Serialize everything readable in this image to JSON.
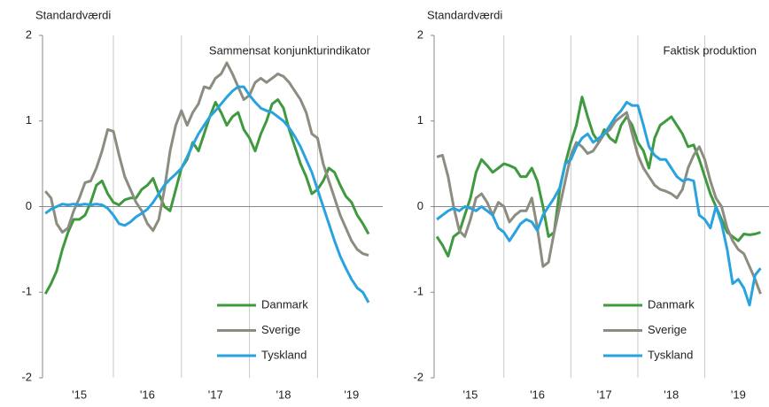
{
  "chart_data": [
    {
      "type": "line",
      "title": "Sammensat konjunkturindikator",
      "y_label": "Standardværdi",
      "categories": [
        null,
        null,
        null,
        null,
        null,
        null,
        "'15",
        null,
        null,
        null,
        null,
        null,
        null,
        null,
        null,
        null,
        null,
        null,
        "'16",
        null,
        null,
        null,
        null,
        null,
        null,
        null,
        null,
        null,
        null,
        null,
        "'17",
        null,
        null,
        null,
        null,
        null,
        null,
        null,
        null,
        null,
        null,
        null,
        "'18",
        null,
        null,
        null,
        null,
        null,
        null,
        null,
        null,
        null,
        null,
        null,
        "'19",
        null,
        null,
        null,
        null,
        null
      ],
      "ylim": [
        -2,
        2
      ],
      "yticks": [
        -2,
        -1,
        0,
        1,
        2
      ],
      "legend": "lower right",
      "series": [
        {
          "name": "Danmark",
          "color": "#3f9a3f",
          "values": [
            -1.02,
            -0.9,
            -0.75,
            -0.5,
            -0.3,
            -0.15,
            -0.15,
            -0.1,
            0.05,
            0.25,
            0.3,
            0.15,
            0.05,
            0.02,
            0.08,
            0.1,
            0.1,
            0.2,
            0.25,
            0.33,
            0.15,
            0.0,
            -0.05,
            0.2,
            0.45,
            0.55,
            0.75,
            0.65,
            0.85,
            1.05,
            1.22,
            1.1,
            0.95,
            1.05,
            1.1,
            0.9,
            0.8,
            0.65,
            0.85,
            1.0,
            1.2,
            1.25,
            1.15,
            0.9,
            0.7,
            0.5,
            0.35,
            0.15,
            0.2,
            0.3,
            0.45,
            0.4,
            0.25,
            0.12,
            0.05,
            -0.1,
            -0.2,
            -0.32,
            null,
            null
          ]
        },
        {
          "name": "Sverige",
          "color": "#8c8c80",
          "values": [
            0.18,
            0.1,
            -0.2,
            -0.3,
            -0.25,
            -0.05,
            0.1,
            0.28,
            0.3,
            0.45,
            0.65,
            0.9,
            0.88,
            0.6,
            0.35,
            0.2,
            0.05,
            -0.05,
            -0.2,
            -0.28,
            -0.15,
            0.2,
            0.65,
            0.95,
            1.12,
            0.95,
            1.1,
            1.2,
            1.4,
            1.38,
            1.5,
            1.55,
            1.68,
            1.55,
            1.4,
            1.25,
            1.3,
            1.45,
            1.5,
            1.45,
            1.5,
            1.55,
            1.52,
            1.45,
            1.35,
            1.25,
            1.1,
            0.85,
            0.8,
            0.5,
            0.3,
            0.1,
            -0.1,
            -0.25,
            -0.4,
            -0.5,
            -0.55,
            -0.57,
            null,
            null
          ]
        },
        {
          "name": "Tyskland",
          "color": "#29a3df",
          "values": [
            -0.08,
            -0.03,
            0.0,
            0.03,
            0.02,
            0.03,
            0.02,
            0.03,
            0.02,
            0.03,
            0.02,
            -0.02,
            -0.1,
            -0.2,
            -0.22,
            -0.18,
            -0.12,
            -0.08,
            -0.03,
            0.05,
            0.15,
            0.25,
            0.32,
            0.38,
            0.45,
            0.58,
            0.72,
            0.85,
            0.95,
            1.05,
            1.12,
            1.2,
            1.28,
            1.35,
            1.4,
            1.4,
            1.3,
            1.22,
            1.15,
            1.12,
            1.1,
            1.05,
            1.0,
            0.92,
            0.82,
            0.7,
            0.55,
            0.4,
            0.2,
            0.0,
            -0.2,
            -0.4,
            -0.58,
            -0.72,
            -0.85,
            -0.95,
            -1.0,
            -1.12,
            null,
            null
          ]
        }
      ]
    },
    {
      "type": "line",
      "title": "Faktisk produktion",
      "y_label": "Standardværdi",
      "categories": [
        null,
        null,
        null,
        null,
        null,
        null,
        "'15",
        null,
        null,
        null,
        null,
        null,
        null,
        null,
        null,
        null,
        null,
        null,
        "'16",
        null,
        null,
        null,
        null,
        null,
        null,
        null,
        null,
        null,
        null,
        null,
        "'17",
        null,
        null,
        null,
        null,
        null,
        null,
        null,
        null,
        null,
        null,
        null,
        "'18",
        null,
        null,
        null,
        null,
        null,
        null,
        null,
        null,
        null,
        null,
        null,
        "'19",
        null,
        null,
        null,
        null,
        null
      ],
      "ylim": [
        -2,
        2
      ],
      "yticks": [
        -2,
        -1,
        0,
        1,
        2
      ],
      "legend": "lower right",
      "series": [
        {
          "name": "Danmark",
          "color": "#3f9a3f",
          "values": [
            -0.35,
            -0.45,
            -0.58,
            -0.35,
            -0.3,
            -0.1,
            0.1,
            0.4,
            0.55,
            0.48,
            0.4,
            0.45,
            0.5,
            0.48,
            0.45,
            0.35,
            0.35,
            0.45,
            0.3,
            0.0,
            -0.35,
            -0.3,
            0.2,
            0.5,
            0.75,
            0.95,
            1.28,
            1.05,
            0.85,
            0.75,
            0.9,
            0.8,
            0.75,
            0.95,
            1.05,
            0.95,
            0.75,
            0.65,
            0.45,
            0.8,
            0.95,
            1.0,
            1.05,
            0.95,
            0.85,
            0.7,
            0.72,
            0.55,
            0.35,
            0.15,
            0.0,
            -0.15,
            -0.3,
            -0.35,
            -0.4,
            -0.32,
            -0.33,
            -0.32,
            -0.3,
            null
          ]
        },
        {
          "name": "Sverige",
          "color": "#8c8c80",
          "values": [
            0.58,
            0.6,
            0.35,
            0.0,
            -0.28,
            -0.35,
            -0.15,
            0.1,
            0.15,
            0.05,
            -0.1,
            0.05,
            0.0,
            -0.18,
            -0.1,
            -0.05,
            -0.05,
            0.1,
            -0.25,
            -0.7,
            -0.65,
            -0.3,
            0.0,
            0.3,
            0.6,
            0.75,
            0.7,
            0.62,
            0.65,
            0.75,
            0.85,
            0.9,
            1.0,
            1.05,
            1.1,
            0.85,
            0.6,
            0.45,
            0.35,
            0.25,
            0.2,
            0.18,
            0.15,
            0.1,
            0.2,
            0.45,
            0.6,
            0.7,
            0.55,
            0.3,
            0.1,
            0.0,
            -0.25,
            -0.4,
            -0.5,
            -0.55,
            -0.7,
            -0.85,
            -1.02,
            null
          ]
        },
        {
          "name": "Tyskland",
          "color": "#29a3df",
          "values": [
            -0.15,
            -0.1,
            -0.05,
            -0.02,
            -0.05,
            0.0,
            -0.02,
            -0.05,
            0.0,
            -0.05,
            -0.1,
            -0.25,
            -0.3,
            -0.4,
            -0.3,
            -0.2,
            -0.15,
            -0.18,
            -0.28,
            -0.1,
            0.0,
            0.1,
            0.22,
            0.5,
            0.55,
            0.7,
            0.8,
            0.85,
            0.75,
            0.8,
            0.85,
            0.95,
            1.05,
            1.12,
            1.22,
            1.18,
            1.18,
            0.95,
            0.7,
            0.6,
            0.55,
            0.55,
            0.45,
            0.35,
            0.3,
            0.32,
            0.3,
            -0.1,
            -0.15,
            -0.25,
            0.0,
            -0.2,
            -0.5,
            -0.9,
            -0.85,
            -0.95,
            -1.15,
            -0.8,
            -0.72,
            null
          ]
        }
      ]
    }
  ]
}
